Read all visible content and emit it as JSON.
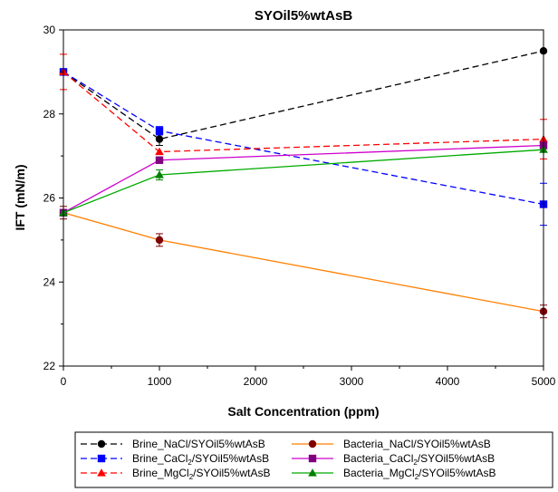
{
  "chart_data": {
    "type": "line",
    "title": "SYOil5%wtAsB",
    "xlabel": "Salt Concentration (ppm)",
    "ylabel": "IFT (mN/m)",
    "xlim": [
      0,
      5000
    ],
    "ylim": [
      22,
      30
    ],
    "xticks": [
      0,
      1000,
      2000,
      3000,
      4000,
      5000
    ],
    "yticks": [
      22,
      24,
      26,
      28,
      30
    ],
    "grid": false,
    "legend_position": "bottom",
    "x": [
      0,
      1000,
      5000
    ],
    "series": [
      {
        "name": "Brine_NaCl/SYOil5%wtAsB",
        "name_main": "Brine_NaCl/SYOil5%wtAsB",
        "name_sub": "",
        "name_after": "",
        "color": "#000000",
        "marker": "circle",
        "dash": "dashed",
        "values": [
          29.0,
          27.4,
          29.5
        ],
        "errors": [
          0,
          0.15,
          0
        ]
      },
      {
        "name": "Brine_CaCl2/SYOil5%wtAsB",
        "name_main": "Brine_CaCl",
        "name_sub": "2",
        "name_after": "/SYOil5%wtAsB",
        "color": "#0000ff",
        "marker": "square",
        "dash": "dashed",
        "values": [
          29.0,
          27.6,
          25.85
        ],
        "errors": [
          0,
          0.1,
          0.5
        ]
      },
      {
        "name": "Brine_MgCl2/SYOil5%wtAsB",
        "name_main": "Brine_MgCl",
        "name_sub": "2",
        "name_after": "/SYOil5%wtAsB",
        "color": "#ff0000",
        "marker": "triangle",
        "dash": "dashed",
        "values": [
          29.0,
          27.1,
          27.4
        ],
        "errors": [
          0.42,
          0,
          0.47
        ]
      },
      {
        "name": "Bacteria_NaCl/SYOil5%wtAsB",
        "name_main": "Bacteria_NaCl/SYOil5%wtAsB",
        "name_sub": "",
        "name_after": "",
        "color": "#ff7f00",
        "marker_color": "#7f0000",
        "marker": "circle",
        "dash": "solid",
        "values": [
          25.65,
          25.0,
          23.3
        ],
        "errors": [
          0.15,
          0.15,
          0.15
        ]
      },
      {
        "name": "Bacteria_CaCl2/SYOil5%wtAsB",
        "name_main": "Bacteria_CaCl",
        "name_sub": "2",
        "name_after": "/SYOil5%wtAsB",
        "color": "#cc00cc",
        "marker_color": "#800080",
        "marker": "square",
        "dash": "solid",
        "values": [
          25.65,
          26.9,
          27.25
        ],
        "errors": [
          0,
          0,
          0
        ]
      },
      {
        "name": "Bacteria_MgCl2/SYOil5%wtAsB",
        "name_main": "Bacteria_MgCl",
        "name_sub": "2",
        "name_after": "/SYOil5%wtAsB",
        "color": "#00aa00",
        "marker_color": "#008000",
        "marker": "triangle",
        "dash": "solid",
        "values": [
          25.65,
          26.55,
          27.15
        ],
        "errors": [
          0,
          0.12,
          0
        ]
      }
    ]
  }
}
